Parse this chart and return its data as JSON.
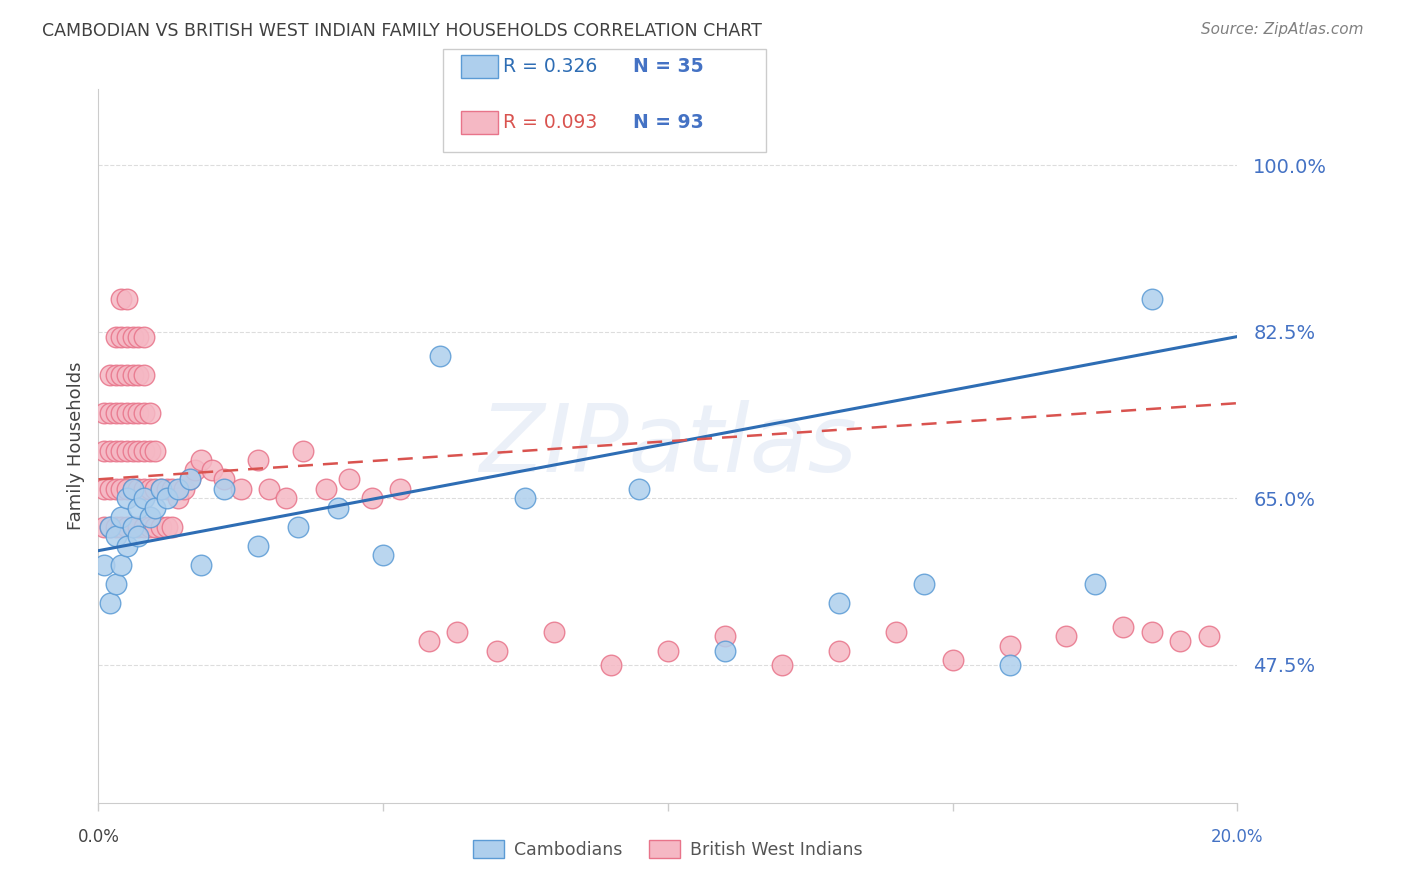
{
  "title": "CAMBODIAN VS BRITISH WEST INDIAN FAMILY HOUSEHOLDS CORRELATION CHART",
  "source": "Source: ZipAtlas.com",
  "ylabel": "Family Households",
  "ytick_labels": [
    "100.0%",
    "82.5%",
    "65.0%",
    "47.5%"
  ],
  "ytick_values": [
    1.0,
    0.825,
    0.65,
    0.475
  ],
  "xlim": [
    0.0,
    0.2
  ],
  "ylim": [
    0.33,
    1.08
  ],
  "watermark": "ZIPatlas",
  "legend_blue_R": "R = 0.326",
  "legend_blue_N": "N = 35",
  "legend_pink_R": "R = 0.093",
  "legend_pink_N": "N = 93",
  "legend_label_blue": "Cambodians",
  "legend_label_pink": "British West Indians",
  "color_blue_fill": "#AECFED",
  "color_pink_fill": "#F5B8C4",
  "color_blue_edge": "#5B9BD5",
  "color_pink_edge": "#E8748A",
  "color_blue_line": "#2E6DB4",
  "color_pink_line": "#D9534F",
  "color_blue_text": "#4472C4",
  "color_axis_text": "#4472C4",
  "background": "#ffffff",
  "grid_color": "#DDDDDD",
  "title_color": "#404040",
  "source_color": "#808080",
  "camb_x": [
    0.001,
    0.002,
    0.002,
    0.003,
    0.003,
    0.004,
    0.004,
    0.005,
    0.005,
    0.006,
    0.006,
    0.007,
    0.007,
    0.008,
    0.009,
    0.01,
    0.011,
    0.012,
    0.014,
    0.016,
    0.018,
    0.022,
    0.028,
    0.035,
    0.042,
    0.05,
    0.06,
    0.075,
    0.095,
    0.11,
    0.13,
    0.145,
    0.16,
    0.175,
    0.185
  ],
  "camb_y": [
    0.58,
    0.62,
    0.54,
    0.61,
    0.56,
    0.63,
    0.58,
    0.65,
    0.6,
    0.66,
    0.62,
    0.64,
    0.61,
    0.65,
    0.63,
    0.64,
    0.66,
    0.65,
    0.66,
    0.67,
    0.58,
    0.66,
    0.6,
    0.62,
    0.64,
    0.59,
    0.8,
    0.65,
    0.66,
    0.49,
    0.54,
    0.56,
    0.475,
    0.56,
    0.86
  ],
  "bwi_x": [
    0.001,
    0.001,
    0.001,
    0.001,
    0.002,
    0.002,
    0.002,
    0.002,
    0.002,
    0.003,
    0.003,
    0.003,
    0.003,
    0.003,
    0.003,
    0.004,
    0.004,
    0.004,
    0.004,
    0.004,
    0.004,
    0.004,
    0.005,
    0.005,
    0.005,
    0.005,
    0.005,
    0.005,
    0.005,
    0.006,
    0.006,
    0.006,
    0.006,
    0.006,
    0.006,
    0.007,
    0.007,
    0.007,
    0.007,
    0.007,
    0.007,
    0.008,
    0.008,
    0.008,
    0.008,
    0.008,
    0.008,
    0.009,
    0.009,
    0.009,
    0.009,
    0.01,
    0.01,
    0.01,
    0.011,
    0.011,
    0.012,
    0.012,
    0.013,
    0.013,
    0.014,
    0.015,
    0.016,
    0.017,
    0.018,
    0.02,
    0.022,
    0.025,
    0.028,
    0.03,
    0.033,
    0.036,
    0.04,
    0.044,
    0.048,
    0.053,
    0.058,
    0.063,
    0.07,
    0.08,
    0.09,
    0.1,
    0.11,
    0.12,
    0.13,
    0.14,
    0.15,
    0.16,
    0.17,
    0.18,
    0.185,
    0.19,
    0.195
  ],
  "bwi_y": [
    0.62,
    0.66,
    0.7,
    0.74,
    0.62,
    0.66,
    0.7,
    0.74,
    0.78,
    0.62,
    0.66,
    0.7,
    0.74,
    0.78,
    0.82,
    0.62,
    0.66,
    0.7,
    0.74,
    0.78,
    0.82,
    0.86,
    0.62,
    0.66,
    0.7,
    0.74,
    0.78,
    0.82,
    0.86,
    0.62,
    0.66,
    0.7,
    0.74,
    0.78,
    0.82,
    0.62,
    0.66,
    0.7,
    0.74,
    0.78,
    0.82,
    0.62,
    0.66,
    0.7,
    0.74,
    0.78,
    0.82,
    0.62,
    0.66,
    0.7,
    0.74,
    0.62,
    0.66,
    0.7,
    0.62,
    0.66,
    0.62,
    0.66,
    0.62,
    0.66,
    0.65,
    0.66,
    0.67,
    0.68,
    0.69,
    0.68,
    0.67,
    0.66,
    0.69,
    0.66,
    0.65,
    0.7,
    0.66,
    0.67,
    0.65,
    0.66,
    0.5,
    0.51,
    0.49,
    0.51,
    0.475,
    0.49,
    0.505,
    0.475,
    0.49,
    0.51,
    0.48,
    0.495,
    0.505,
    0.515,
    0.51,
    0.5,
    0.505
  ]
}
